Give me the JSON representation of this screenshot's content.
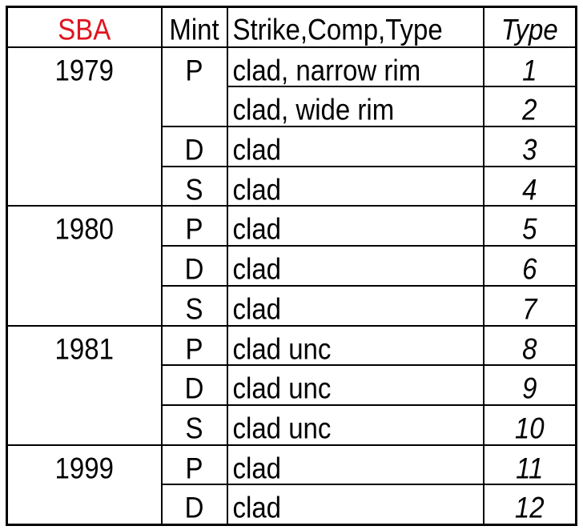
{
  "header": {
    "sba": "SBA",
    "mint": "Mint",
    "strike": "Strike,Comp,Type",
    "type": "Type",
    "sba_color": "#e0141e"
  },
  "groups": [
    {
      "year": "1979",
      "rows": [
        {
          "mint": "P",
          "strike": "clad, narrow rim",
          "type": "1"
        },
        {
          "mint": "",
          "strike": "clad, wide rim",
          "type": "2"
        },
        {
          "mint": "D",
          "strike": "clad",
          "type": "3"
        },
        {
          "mint": "S",
          "strike": "clad",
          "type": "4"
        }
      ]
    },
    {
      "year": "1980",
      "rows": [
        {
          "mint": "P",
          "strike": "clad",
          "type": "5"
        },
        {
          "mint": "D",
          "strike": "clad",
          "type": "6"
        },
        {
          "mint": "S",
          "strike": "clad",
          "type": "7"
        }
      ]
    },
    {
      "year": "1981",
      "rows": [
        {
          "mint": "P",
          "strike": "clad unc",
          "type": "8"
        },
        {
          "mint": "D",
          "strike": "clad unc",
          "type": "9"
        },
        {
          "mint": "S",
          "strike": "clad unc",
          "type": "10"
        }
      ]
    },
    {
      "year": "1999",
      "rows": [
        {
          "mint": "P",
          "strike": "clad",
          "type": "11"
        },
        {
          "mint": "D",
          "strike": "clad",
          "type": "12"
        }
      ]
    }
  ]
}
